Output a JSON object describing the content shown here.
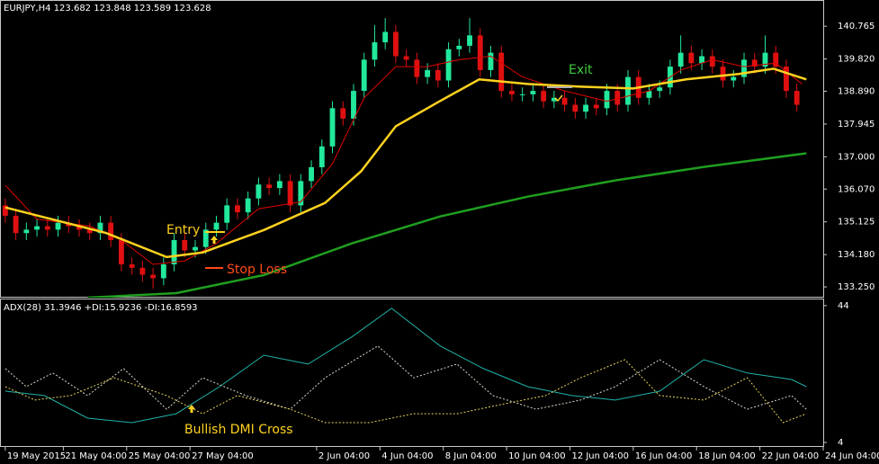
{
  "chart_data": [
    {
      "type": "candlestick",
      "title": "EURJPY,H4  123.682 123.848 123.589 123.628",
      "annotations": [
        "Entry",
        "Stop Loss",
        "Exit"
      ],
      "up_color": "#22e89c",
      "down_color": "#e01010",
      "xlim": [
        -0.5,
        77.5
      ],
      "ylim": [
        132.94,
        141.52
      ],
      "yticks": [
        140.765,
        {
          "value": 139.82,
          "label": "139.820"
        },
        {
          "value": 138.89,
          "label": "138.890"
        },
        137.945,
        {
          "value": 137,
          "label": "137.000"
        },
        {
          "value": 136.07,
          "label": "136.070"
        },
        135.125,
        {
          "value": 134.18,
          "label": "134.180"
        },
        {
          "value": 133.25,
          "label": "133.250"
        }
      ],
      "open": [
        135.6,
        135.3,
        134.8,
        134.9,
        135.0,
        134.9,
        135.1,
        135.0,
        134.9,
        134.8,
        135.1,
        134.6,
        133.9,
        133.8,
        133.6,
        133.5,
        133.9,
        134.6,
        134.3,
        134.4,
        134.9,
        135.1,
        135.6,
        135.4,
        135.8,
        136.2,
        136.1,
        136.3,
        135.6,
        136.3,
        136.7,
        137.3,
        138.4,
        138.1,
        138.9,
        139.8,
        140.3,
        140.6,
        139.9,
        139.8,
        139.3,
        139.5,
        139.2,
        140.1,
        140.2,
        140.5,
        139.5,
        140.0,
        138.9,
        138.8,
        138.8,
        138.9,
        138.6,
        138.7,
        138.5,
        138.3,
        138.5,
        138.4,
        138.9,
        138.5,
        139.3,
        138.7,
        138.9,
        139.0,
        139.6,
        140.0,
        139.7,
        139.9,
        139.6,
        139.2,
        139.3,
        139.8,
        139.6,
        140.0,
        139.6,
        138.9
      ],
      "high": [
        135.8,
        135.5,
        135.1,
        135.2,
        135.2,
        135.3,
        135.3,
        135.2,
        135.1,
        135.3,
        135.3,
        134.8,
        134.1,
        134.0,
        133.8,
        134.1,
        134.8,
        134.8,
        134.6,
        135.1,
        135.3,
        135.8,
        135.8,
        136.0,
        136.4,
        136.4,
        136.5,
        136.5,
        136.5,
        136.9,
        137.5,
        138.6,
        138.6,
        139.1,
        140.0,
        140.8,
        141.0,
        140.8,
        140.1,
        140.0,
        139.7,
        139.7,
        140.3,
        140.4,
        141.0,
        140.7,
        140.2,
        140.2,
        139.1,
        139.0,
        139.1,
        139.1,
        138.9,
        138.9,
        138.7,
        138.7,
        138.7,
        139.1,
        139.1,
        139.5,
        139.5,
        139.1,
        139.2,
        139.8,
        140.5,
        140.2,
        140.1,
        140.1,
        139.8,
        139.5,
        140.0,
        140.0,
        140.5,
        140.2,
        139.8,
        139.1
      ],
      "low": [
        135.1,
        134.6,
        134.6,
        134.7,
        134.7,
        134.7,
        134.8,
        134.7,
        134.6,
        134.6,
        134.4,
        133.7,
        133.6,
        133.4,
        133.2,
        133.3,
        133.7,
        134.1,
        134.1,
        134.2,
        134.7,
        134.9,
        135.2,
        135.2,
        135.6,
        135.9,
        135.9,
        135.4,
        135.4,
        136.1,
        136.5,
        137.1,
        137.9,
        137.9,
        138.7,
        139.6,
        140.1,
        139.7,
        139.6,
        139.1,
        139.1,
        139.0,
        139.0,
        139.9,
        140.0,
        139.3,
        139.3,
        138.7,
        138.6,
        138.6,
        138.6,
        138.4,
        138.4,
        138.3,
        138.1,
        138.1,
        138.2,
        138.2,
        138.3,
        138.3,
        138.5,
        138.5,
        138.7,
        138.8,
        139.4,
        139.5,
        139.5,
        139.4,
        139.0,
        139.0,
        139.1,
        139.4,
        139.4,
        139.4,
        138.7,
        138.3
      ],
      "close": [
        135.3,
        134.8,
        134.9,
        135.0,
        134.9,
        135.1,
        135.0,
        134.9,
        134.8,
        135.1,
        134.6,
        133.9,
        133.8,
        133.6,
        133.5,
        133.9,
        134.6,
        134.3,
        134.4,
        134.9,
        135.1,
        135.6,
        135.4,
        135.8,
        136.2,
        136.1,
        136.3,
        135.6,
        136.3,
        136.7,
        137.3,
        138.4,
        138.1,
        138.9,
        139.8,
        140.3,
        140.6,
        139.9,
        139.8,
        139.3,
        139.5,
        139.2,
        140.1,
        140.2,
        140.5,
        139.5,
        140.0,
        138.9,
        138.8,
        138.8,
        138.9,
        138.6,
        138.7,
        138.5,
        138.3,
        138.5,
        138.4,
        138.9,
        138.5,
        139.3,
        138.7,
        138.9,
        139.0,
        139.6,
        140.0,
        139.7,
        139.9,
        139.6,
        139.2,
        139.3,
        139.8,
        139.6,
        140.0,
        139.6,
        138.9,
        138.5
      ],
      "series": [
        {
          "color": "#1f9e1f",
          "width": 2.5,
          "x": [
            7.8,
            16.2,
            24.5,
            32.8,
            41.2,
            49.5,
            57.8,
            66.2,
            75.9
          ],
          "values": [
            132.94,
            133.07,
            133.59,
            134.5,
            135.28,
            135.85,
            136.32,
            136.71,
            137.1
          ]
        },
        {
          "color": "#e00000",
          "width": 1,
          "x": [
            0,
            3,
            8,
            11,
            14,
            17,
            20,
            24,
            28,
            31,
            34,
            37,
            40,
            43,
            46,
            49,
            53,
            57,
            61,
            64,
            67,
            70,
            73,
            75.5
          ],
          "values": [
            136.18,
            135.2,
            135.0,
            134.6,
            133.9,
            134.0,
            134.5,
            135.5,
            135.7,
            136.8,
            138.7,
            139.6,
            139.6,
            139.8,
            139.9,
            139.3,
            138.9,
            138.6,
            138.9,
            139.5,
            139.8,
            139.6,
            139.7,
            139.1
          ]
        },
        {
          "color": "#ffd21f",
          "width": 2.5,
          "x": [
            0,
            9.5,
            15.3,
            18.7,
            24.5,
            30.3,
            33.7,
            37,
            41.2,
            44.9,
            49.5,
            54.5,
            59.5,
            64.5,
            69.5,
            72.8,
            75.9
          ],
          "values": [
            135.54,
            134.81,
            134.11,
            134.24,
            134.89,
            135.67,
            136.58,
            137.88,
            138.61,
            139.23,
            139.1,
            139.02,
            138.97,
            139.23,
            139.39,
            139.54,
            139.23
          ]
        }
      ]
    },
    {
      "type": "line",
      "title": "ADX(28) 31.3946 +DI:15.9236 -DI:16.8593",
      "annotations": [
        "Bullish DMI Cross"
      ],
      "xlim": [
        -0.5,
        77.5
      ],
      "ylim": [
        2.7,
        45.8
      ],
      "yticks": [
        44,
        4
      ],
      "xticks": [
        {
          "value": 0,
          "label": "19 May 2015"
        },
        {
          "value": 5.5,
          "label": "21 May 04:00"
        },
        {
          "value": 11.5,
          "label": "25 May 04:00"
        },
        {
          "value": 17.5,
          "label": "27 May 04:00"
        },
        {
          "value": 29.5,
          "label": "2 Jun 04:00"
        },
        {
          "value": 35.5,
          "label": "4 Jun 04:00"
        },
        {
          "value": 41.5,
          "label": "8 Jun 04:00"
        },
        {
          "value": 47.5,
          "label": "10 Jun 04:00"
        },
        {
          "value": 53.5,
          "label": "12 Jun 04:00"
        },
        {
          "value": 59.5,
          "label": "16 Jun 04:00"
        },
        {
          "value": 65.5,
          "label": "18 Jun 04:00"
        },
        {
          "value": 71.5,
          "label": "22 Jun 04:00"
        },
        {
          "value": 77.5,
          "label": "24 Jun 04:00"
        }
      ],
      "series": [
        {
          "color": "#20b2aa",
          "width": 1,
          "x": [
            0,
            3.7,
            7.8,
            12,
            16.2,
            20.3,
            24.5,
            28.7,
            32.8,
            36.6,
            41.2,
            45.3,
            49.5,
            53.7,
            57.8,
            62,
            66.2,
            70.3,
            74.5,
            75.9
          ],
          "values": [
            19.0,
            17.7,
            11.1,
            9.8,
            12.4,
            20.3,
            29.5,
            26.9,
            34.8,
            43.2,
            32.2,
            25.6,
            20.3,
            17.7,
            16.4,
            19.0,
            28.2,
            24.3,
            22.4,
            20.3
          ]
        },
        {
          "color": "#d8d8c8",
          "width": 1,
          "dash": "dotted",
          "x": [
            0,
            2,
            4.5,
            7.8,
            11.2,
            15.3,
            18.7,
            22.8,
            27,
            30.3,
            35.3,
            38.7,
            42.8,
            46.2,
            50.3,
            54.5,
            57.8,
            62,
            66.2,
            70.3,
            74.5,
            75.9
          ],
          "values": [
            25.6,
            20.3,
            24.3,
            17.7,
            25.6,
            13.7,
            22.9,
            17.7,
            13.7,
            22.9,
            32.2,
            22.9,
            26.9,
            17.7,
            13.7,
            16.4,
            20.3,
            28.2,
            20.3,
            13.7,
            17.7,
            13.7
          ]
        },
        {
          "color": "#e6d35a",
          "width": 1,
          "dash": "dotted",
          "x": [
            0,
            2.8,
            6.2,
            10.3,
            15.3,
            18.7,
            22,
            27,
            30.3,
            34.5,
            38.7,
            42.8,
            47,
            51.2,
            54.5,
            58.7,
            62,
            66.2,
            70.3,
            73.7,
            75.9
          ],
          "values": [
            20.3,
            16.4,
            17.7,
            22.9,
            17.7,
            12.4,
            17.7,
            13.7,
            9.8,
            9.8,
            12.4,
            12.4,
            15.1,
            17.7,
            22.9,
            28.2,
            17.7,
            16.4,
            22.9,
            9.8,
            12.4
          ]
        }
      ]
    }
  ]
}
